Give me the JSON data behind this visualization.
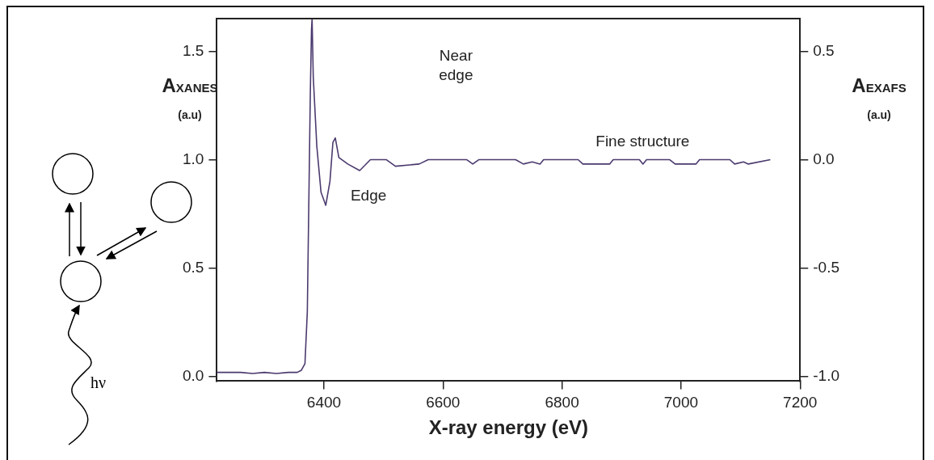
{
  "chart_data": {
    "type": "line",
    "xlabel": "X-ray energy (eV)",
    "ylabel": "A$_{XANES}$ (a.u)",
    "y2label": "A$_{EXAFS}$ (a.u)",
    "xlim": [
      6220,
      7200
    ],
    "xticks": [
      6400,
      6600,
      6800,
      7000,
      7200
    ],
    "ylim": [
      -0.02,
      1.65
    ],
    "yticks": [
      {
        "value": 0,
        "label": "0.0"
      },
      0.5,
      {
        "value": 1,
        "label": "1.0"
      },
      1.5
    ],
    "y2lim": [
      -1.02,
      0.65
    ],
    "y2ticks": [
      {
        "value": -1,
        "label": "-1.0"
      },
      -0.5,
      {
        "value": 0,
        "label": "0.0"
      },
      0.5
    ],
    "grid": false,
    "legend": false,
    "marker": "none",
    "line_style": "solid",
    "series": [
      {
        "color": "#4b3a6e",
        "x": [
          6220,
          6260,
          6280,
          6300,
          6320,
          6340,
          6355,
          6362,
          6368,
          6372,
          6375,
          6377,
          6379,
          6380,
          6382,
          6388,
          6395,
          6403,
          6410,
          6415,
          6419,
          6425,
          6440,
          6460,
          6478,
          6505,
          6520,
          6560,
          6575,
          6640,
          6650,
          6660,
          6722,
          6735,
          6750,
          6763,
          6769,
          6827,
          6835,
          6880,
          6886,
          6930,
          6936,
          6942,
          6981,
          6990,
          7025,
          7031,
          7082,
          7090,
          7105,
          7113,
          7150
        ],
        "values": [
          0.02,
          0.02,
          0.015,
          0.02,
          0.015,
          0.02,
          0.02,
          0.03,
          0.06,
          0.3,
          0.9,
          1.3,
          1.6,
          1.65,
          1.38,
          1.06,
          0.85,
          0.79,
          0.9,
          1.08,
          1.1,
          1.01,
          0.98,
          0.95,
          1.0,
          1.0,
          0.97,
          0.98,
          1.0,
          1.0,
          0.98,
          1.0,
          1.0,
          0.98,
          0.99,
          0.98,
          1.0,
          1.0,
          0.98,
          0.98,
          1.0,
          1.0,
          0.98,
          1.0,
          1.0,
          0.98,
          0.98,
          1.0,
          1.0,
          0.98,
          0.99,
          0.98,
          1.0
        ]
      }
    ],
    "annotations": [
      "Near edge",
      "Edge",
      "Fine structure",
      "hν"
    ]
  }
}
